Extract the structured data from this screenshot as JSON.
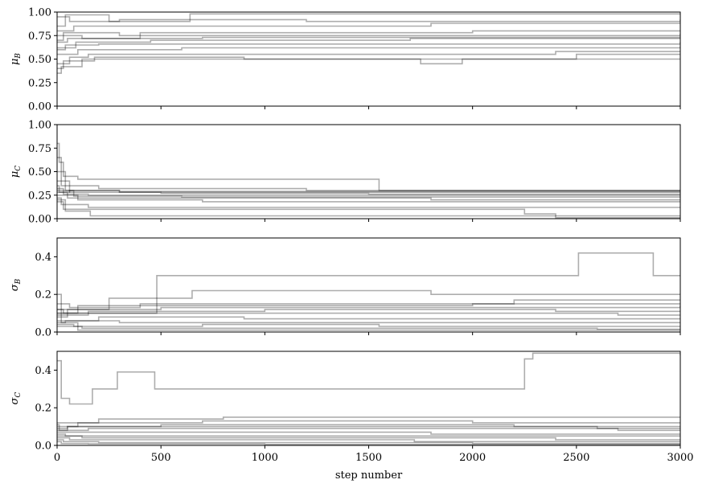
{
  "chart_data": {
    "type": "line",
    "xlabel": "step number",
    "xlim": [
      0,
      3000
    ],
    "xticks": [
      0,
      500,
      1000,
      1500,
      2000,
      2500,
      3000
    ],
    "trace_color": "#000000",
    "trace_alpha": 0.3,
    "panels": [
      {
        "ylabel_sym": "μ",
        "ylabel_sub": "B",
        "ylim": [
          0,
          1
        ],
        "yticks": [
          "0.00",
          "0.25",
          "0.50",
          "0.75",
          "1.00"
        ],
        "ytick_values": [
          0,
          0.25,
          0.5,
          0.75,
          1.0
        ],
        "series": [
          {
            "x": [
              0,
              60,
              300,
              1200,
              3000
            ],
            "y": [
              0.95,
              0.9,
              0.92,
              0.9,
              0.92
            ]
          },
          {
            "x": [
              0,
              40,
              250,
              640,
              3000
            ],
            "y": [
              0.85,
              0.97,
              0.9,
              0.98,
              0.98
            ]
          },
          {
            "x": [
              0,
              80,
              500,
              1800,
              3000
            ],
            "y": [
              0.8,
              0.85,
              0.85,
              0.88,
              0.88
            ]
          },
          {
            "x": [
              0,
              120,
              400,
              2000,
              3000
            ],
            "y": [
              0.75,
              0.72,
              0.78,
              0.8,
              0.8
            ]
          },
          {
            "x": [
              0,
              30,
              300,
              1500,
              3000
            ],
            "y": [
              0.7,
              0.78,
              0.75,
              0.75,
              0.77
            ]
          },
          {
            "x": [
              0,
              50,
              700,
              2300,
              3000
            ],
            "y": [
              0.68,
              0.72,
              0.73,
              0.73,
              0.74
            ]
          },
          {
            "x": [
              0,
              90,
              450,
              1700,
              3000
            ],
            "y": [
              0.62,
              0.68,
              0.7,
              0.72,
              0.72
            ]
          },
          {
            "x": [
              0,
              40,
              200,
              2600,
              3000
            ],
            "y": [
              0.6,
              0.65,
              0.66,
              0.66,
              0.68
            ]
          },
          {
            "x": [
              0,
              100,
              600,
              2100,
              3000
            ],
            "y": [
              0.55,
              0.6,
              0.62,
              0.62,
              0.63
            ]
          },
          {
            "x": [
              0,
              60,
              150,
              2400,
              3000
            ],
            "y": [
              0.45,
              0.52,
              0.55,
              0.58,
              0.58
            ]
          },
          {
            "x": [
              0,
              20,
              120,
              1750,
              1950,
              2500,
              3000
            ],
            "y": [
              0.35,
              0.42,
              0.5,
              0.45,
              0.5,
              0.55,
              0.55
            ]
          },
          {
            "x": [
              0,
              30,
              180,
              900,
              3000
            ],
            "y": [
              0.4,
              0.48,
              0.52,
              0.5,
              0.5
            ]
          }
        ]
      },
      {
        "ylabel_sym": "μ",
        "ylabel_sub": "C",
        "ylim": [
          0,
          1
        ],
        "yticks": [
          "0.00",
          "0.25",
          "0.50",
          "0.75",
          "1.00"
        ],
        "ytick_values": [
          0,
          0.25,
          0.5,
          0.75,
          1.0
        ],
        "series": [
          {
            "x": [
              0,
              10,
              30,
              100,
              1550,
              3000
            ],
            "y": [
              0.8,
              0.6,
              0.45,
              0.42,
              0.3,
              0.3
            ]
          },
          {
            "x": [
              0,
              20,
              200,
              1200,
              3000
            ],
            "y": [
              0.65,
              0.35,
              0.32,
              0.3,
              0.3
            ]
          },
          {
            "x": [
              0,
              40,
              300,
              2000,
              3000
            ],
            "y": [
              0.5,
              0.3,
              0.28,
              0.28,
              0.27
            ]
          },
          {
            "x": [
              0,
              60,
              500,
              1500,
              3000
            ],
            "y": [
              0.4,
              0.28,
              0.27,
              0.26,
              0.26
            ]
          },
          {
            "x": [
              0,
              30,
              150,
              2200,
              3000
            ],
            "y": [
              0.32,
              0.26,
              0.25,
              0.25,
              0.24
            ]
          },
          {
            "x": [
              0,
              80,
              600,
              2600,
              3000
            ],
            "y": [
              0.3,
              0.24,
              0.23,
              0.23,
              0.22
            ]
          },
          {
            "x": [
              0,
              50,
              250,
              1800,
              3000
            ],
            "y": [
              0.28,
              0.22,
              0.22,
              0.2,
              0.2
            ]
          },
          {
            "x": [
              0,
              100,
              700,
              2500,
              3000
            ],
            "y": [
              0.25,
              0.2,
              0.18,
              0.18,
              0.18
            ]
          },
          {
            "x": [
              0,
              20,
              150,
              1000,
              3000
            ],
            "y": [
              0.22,
              0.15,
              0.12,
              0.12,
              0.12
            ]
          },
          {
            "x": [
              0,
              40,
              160,
              900,
              3000
            ],
            "y": [
              0.2,
              0.08,
              0.03,
              0.03,
              0.03
            ]
          },
          {
            "x": [
              0,
              30,
              2250,
              2400,
              3000
            ],
            "y": [
              0.18,
              0.1,
              0.05,
              0.01,
              0.01
            ]
          },
          {
            "x": [
              0,
              10,
              60,
              300,
              3000
            ],
            "y": [
              0.35,
              0.28,
              0.3,
              0.29,
              0.29
            ]
          }
        ]
      },
      {
        "ylabel_sym": "σ",
        "ylabel_sub": "B",
        "ylim": [
          0,
          0.5
        ],
        "yticks": [
          "0.0",
          "0.2",
          "0.4"
        ],
        "ytick_values": [
          0,
          0.2,
          0.4
        ],
        "series": [
          {
            "x": [
              0,
              480,
              2510,
              2870,
              3000
            ],
            "y": [
              0.1,
              0.3,
              0.42,
              0.3,
              0.3
            ]
          },
          {
            "x": [
              0,
              250,
              650,
              1800,
              3000
            ],
            "y": [
              0.12,
              0.18,
              0.22,
              0.2,
              0.2
            ]
          },
          {
            "x": [
              0,
              60,
              400,
              2200,
              3000
            ],
            "y": [
              0.15,
              0.13,
              0.15,
              0.17,
              0.17
            ]
          },
          {
            "x": [
              0,
              100,
              800,
              2000,
              3000
            ],
            "y": [
              0.1,
              0.14,
              0.14,
              0.15,
              0.15
            ]
          },
          {
            "x": [
              0,
              50,
              500,
              1500,
              3000
            ],
            "y": [
              0.08,
              0.12,
              0.13,
              0.13,
              0.14
            ]
          },
          {
            "x": [
              0,
              150,
              1000,
              2400,
              3000
            ],
            "y": [
              0.09,
              0.11,
              0.12,
              0.11,
              0.11
            ]
          },
          {
            "x": [
              0,
              30,
              600,
              2700,
              3000
            ],
            "y": [
              0.12,
              0.1,
              0.1,
              0.09,
              0.09
            ]
          },
          {
            "x": [
              0,
              200,
              900,
              2300,
              3000
            ],
            "y": [
              0.06,
              0.08,
              0.07,
              0.07,
              0.07
            ]
          },
          {
            "x": [
              0,
              40,
              300,
              1700,
              3000
            ],
            "y": [
              0.05,
              0.06,
              0.05,
              0.05,
              0.05
            ]
          },
          {
            "x": [
              0,
              80,
              700,
              1550,
              3000
            ],
            "y": [
              0.04,
              0.03,
              0.04,
              0.03,
              0.03
            ]
          },
          {
            "x": [
              0,
              120,
              1200,
              2600,
              3000
            ],
            "y": [
              0.03,
              0.02,
              0.02,
              0.015,
              0.015
            ]
          },
          {
            "x": [
              0,
              20,
              100,
              2100,
              3000
            ],
            "y": [
              0.2,
              0.05,
              0.01,
              0.01,
              0.01
            ]
          }
        ]
      },
      {
        "ylabel_sym": "σ",
        "ylabel_sub": "C",
        "ylim": [
          0,
          0.5
        ],
        "yticks": [
          "0.0",
          "0.2",
          "0.4"
        ],
        "ytick_values": [
          0,
          0.2,
          0.4
        ],
        "series": [
          {
            "x": [
              0,
              20,
              60,
              170,
              290,
              470,
              2250,
              2290,
              3000
            ],
            "y": [
              0.45,
              0.25,
              0.22,
              0.3,
              0.39,
              0.3,
              0.46,
              0.49,
              0.48
            ]
          },
          {
            "x": [
              0,
              200,
              800,
              2500,
              3000
            ],
            "y": [
              0.12,
              0.14,
              0.15,
              0.15,
              0.15
            ]
          },
          {
            "x": [
              0,
              100,
              700,
              2000,
              3000
            ],
            "y": [
              0.1,
              0.12,
              0.13,
              0.12,
              0.12
            ]
          },
          {
            "x": [
              0,
              50,
              500,
              2200,
              3000
            ],
            "y": [
              0.09,
              0.1,
              0.11,
              0.1,
              0.1
            ]
          },
          {
            "x": [
              0,
              150,
              1000,
              2700,
              3000
            ],
            "y": [
              0.08,
              0.09,
              0.09,
              0.08,
              0.08
            ]
          },
          {
            "x": [
              0,
              80,
              600,
              1800,
              3000
            ],
            "y": [
              0.07,
              0.07,
              0.07,
              0.06,
              0.06
            ]
          },
          {
            "x": [
              0,
              40,
              300,
              1500,
              3000
            ],
            "y": [
              0.06,
              0.05,
              0.05,
              0.05,
              0.05
            ]
          },
          {
            "x": [
              0,
              120,
              900,
              2400,
              3000
            ],
            "y": [
              0.05,
              0.04,
              0.04,
              0.03,
              0.03
            ]
          },
          {
            "x": [
              0,
              60,
              400,
              1720,
              3000
            ],
            "y": [
              0.04,
              0.03,
              0.03,
              0.02,
              0.02
            ]
          },
          {
            "x": [
              0,
              30,
              200,
              2000,
              3000
            ],
            "y": [
              0.03,
              0.02,
              0.015,
              0.01,
              0.01
            ]
          },
          {
            "x": [
              0,
              20,
              150,
              1000,
              3000
            ],
            "y": [
              0.02,
              0.01,
              0.008,
              0.005,
              0.005
            ]
          },
          {
            "x": [
              0,
              10,
              50,
              2600,
              3000
            ],
            "y": [
              0.11,
              0.08,
              0.1,
              0.09,
              0.09
            ]
          }
        ]
      }
    ]
  }
}
